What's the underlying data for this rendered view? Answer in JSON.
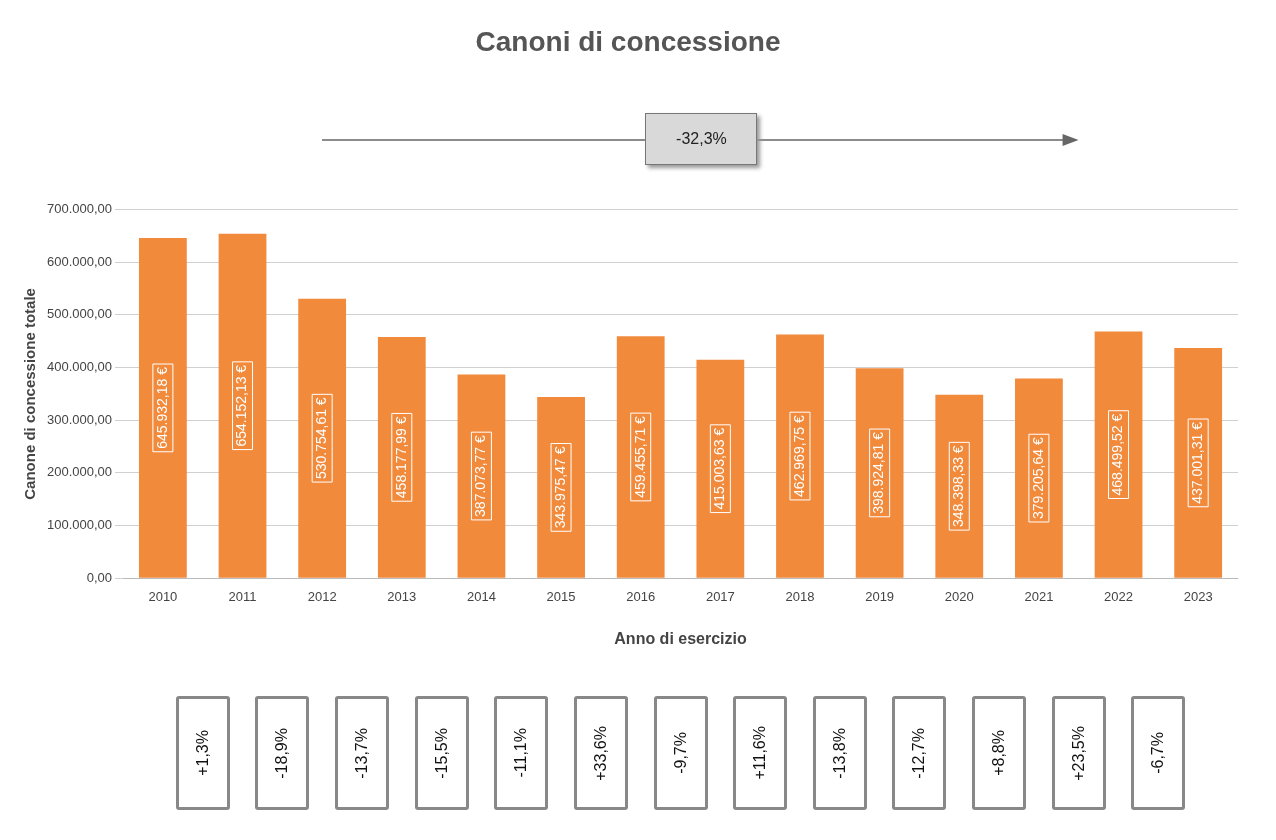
{
  "chart_data": {
    "type": "bar",
    "title": "Canoni di concessione",
    "xlabel": "Anno di esercizio",
    "ylabel": "Canone di concessione totale",
    "categories": [
      "2010",
      "2011",
      "2012",
      "2013",
      "2014",
      "2015",
      "2016",
      "2017",
      "2018",
      "2019",
      "2020",
      "2021",
      "2022",
      "2023"
    ],
    "values": [
      645932.18,
      654152.13,
      530754.61,
      458177.99,
      387073.77,
      343975.47,
      459455.71,
      415003.63,
      462969.75,
      398924.81,
      348398.33,
      379205.64,
      468499.52,
      437001.31
    ],
    "value_labels": [
      "645.932,18 €",
      "654.152,13 €",
      "530.754,61 €",
      "458.177,99 €",
      "387.073,77 €",
      "343.975,47 €",
      "459.455,71 €",
      "415.003,63 €",
      "462.969,75 €",
      "398.924,81 €",
      "348.398,33 €",
      "379.205,64 €",
      "468.499,52 €",
      "437.001,31 €"
    ],
    "color": "#f28a3c",
    "ylim": [
      0,
      700000
    ],
    "yticks": [
      {
        "value": 0,
        "label": "0,00"
      },
      {
        "value": 100000,
        "label": "100.000,00"
      },
      {
        "value": 200000,
        "label": "200.000,00"
      },
      {
        "value": 300000,
        "label": "300.000,00"
      },
      {
        "value": 400000,
        "label": "400.000,00"
      },
      {
        "value": 500000,
        "label": "500.000,00"
      },
      {
        "value": 600000,
        "label": "600.000,00"
      },
      {
        "value": 700000,
        "label": "700.000,00"
      }
    ],
    "grid": "y",
    "legend": false,
    "annotations": [
      "-32,3%",
      "+1,3%",
      "-18,9%",
      "-13,7%",
      "-15,5%",
      "-11,1%",
      "+33,6%",
      "-9,7%",
      "+11,6%",
      "-13,8%",
      "-12,7%",
      "+8,8%",
      "+23,5%",
      "-6,7%"
    ]
  }
}
